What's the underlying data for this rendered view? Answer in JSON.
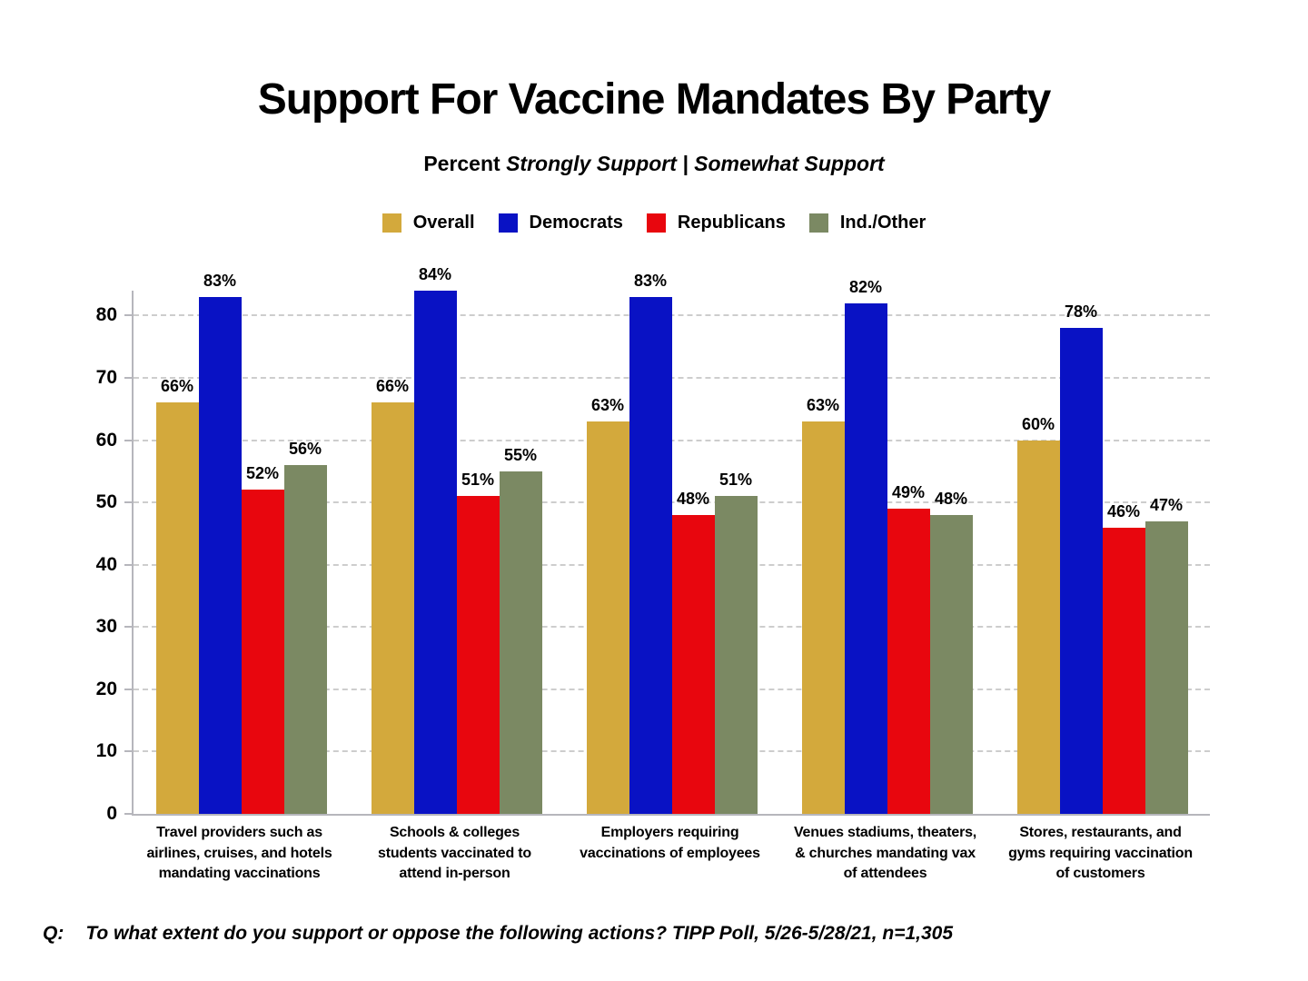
{
  "subtitle": {
    "prefix": "Percent ",
    "emphasis": "Strongly Support | Somewhat Support"
  },
  "footer": {
    "prefix": "Q:",
    "text": "To what extent do you support or oppose the following actions? TIPP Poll, 5/26-5/28/21, n=1,305"
  },
  "colors": {
    "background": "#FFFFFF",
    "text": "#000000",
    "axis": "#B6B6BC",
    "gridline": "#CDCDCD"
  },
  "chart_data": {
    "type": "bar",
    "title": "Support For Vaccine Mandates By Party",
    "subtitle": "Percent Strongly Support | Somewhat Support",
    "categories": [
      "Travel providers such as\nairlines, cruises, and hotels\nmandating vaccinations",
      "Schools & colleges\nstudents vaccinated to\nattend in-person",
      "Employers requiring\nvaccinations of employees",
      "Venues stadiums, theaters,\n& churches mandating vax\nof attendees",
      "Stores, restaurants, and\ngyms requiring vaccination\nof customers"
    ],
    "series": [
      {
        "name": "Overall",
        "color": "#D3A93C",
        "values": [
          66,
          66,
          63,
          63,
          60
        ]
      },
      {
        "name": "Democrats",
        "color": "#0912C4",
        "values": [
          83,
          84,
          83,
          82,
          78
        ]
      },
      {
        "name": "Republicans",
        "color": "#E8060E",
        "values": [
          52,
          51,
          48,
          49,
          46
        ]
      },
      {
        "name": "Ind./Other",
        "color": "#7B8963",
        "values": [
          56,
          55,
          51,
          48,
          47
        ]
      }
    ],
    "value_suffix": "%",
    "ylim": [
      0,
      84
    ],
    "yticks": [
      0,
      10,
      20,
      30,
      40,
      50,
      60,
      70,
      80
    ],
    "grid": "horizontal-dashed",
    "legend_position": "top",
    "value_labels": "above-bars"
  }
}
